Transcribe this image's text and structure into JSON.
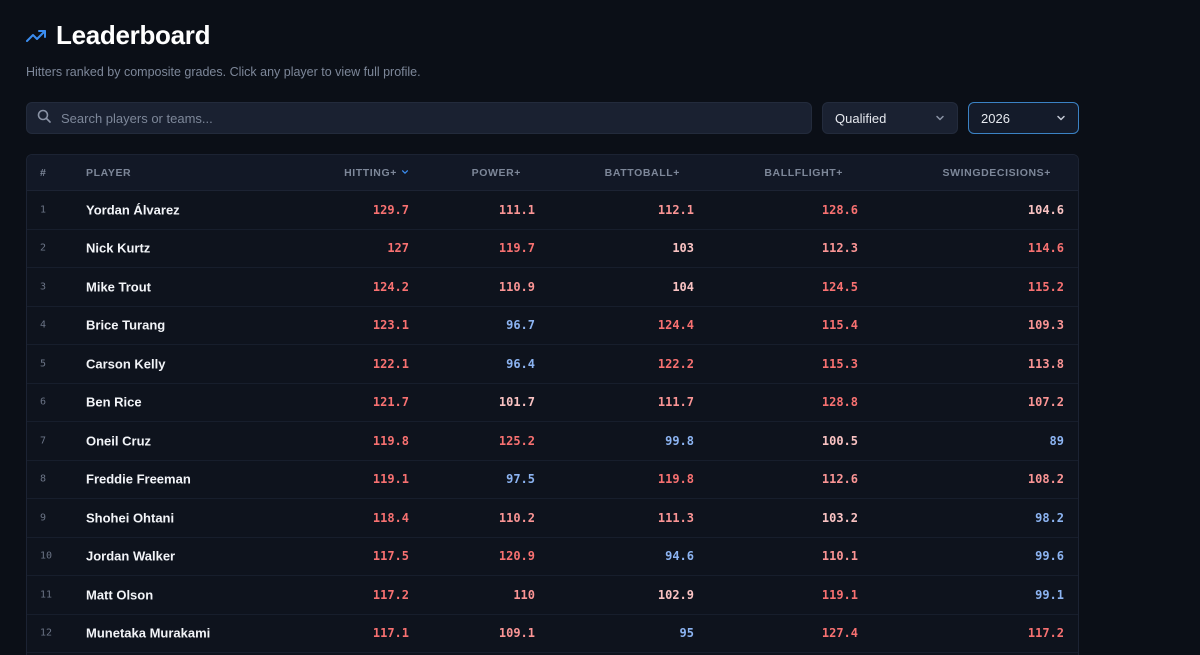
{
  "header": {
    "title": "Leaderboard",
    "subtitle": "Hitters ranked by composite grades. Click any player to view full profile."
  },
  "search": {
    "placeholder": "Search players or teams...",
    "value": ""
  },
  "filters": {
    "qualifier": "Qualified",
    "season": "2026"
  },
  "table": {
    "columns": {
      "rank": "#",
      "player": "PLAYER",
      "hitting": "HITTING+",
      "power": "POWER+",
      "battoball": "BATTOBALL+",
      "ballflight": "BALLFLIGHT+",
      "swingdecisions": "SWINGDECISIONS+"
    },
    "sort_column": "hitting",
    "sort_direction": "desc",
    "rows": [
      {
        "rank": "1",
        "player": "Yordan Álvarez",
        "hitting": "129.7",
        "power": "111.1",
        "battoball": "112.1",
        "ballflight": "128.6",
        "swingdecisions": "104.6"
      },
      {
        "rank": "2",
        "player": "Nick Kurtz",
        "hitting": "127",
        "power": "119.7",
        "battoball": "103",
        "ballflight": "112.3",
        "swingdecisions": "114.6"
      },
      {
        "rank": "3",
        "player": "Mike Trout",
        "hitting": "124.2",
        "power": "110.9",
        "battoball": "104",
        "ballflight": "124.5",
        "swingdecisions": "115.2"
      },
      {
        "rank": "4",
        "player": "Brice Turang",
        "hitting": "123.1",
        "power": "96.7",
        "battoball": "124.4",
        "ballflight": "115.4",
        "swingdecisions": "109.3"
      },
      {
        "rank": "5",
        "player": "Carson Kelly",
        "hitting": "122.1",
        "power": "96.4",
        "battoball": "122.2",
        "ballflight": "115.3",
        "swingdecisions": "113.8"
      },
      {
        "rank": "6",
        "player": "Ben Rice",
        "hitting": "121.7",
        "power": "101.7",
        "battoball": "111.7",
        "ballflight": "128.8",
        "swingdecisions": "107.2"
      },
      {
        "rank": "7",
        "player": "Oneil Cruz",
        "hitting": "119.8",
        "power": "125.2",
        "battoball": "99.8",
        "ballflight": "100.5",
        "swingdecisions": "89"
      },
      {
        "rank": "8",
        "player": "Freddie Freeman",
        "hitting": "119.1",
        "power": "97.5",
        "battoball": "119.8",
        "ballflight": "112.6",
        "swingdecisions": "108.2"
      },
      {
        "rank": "9",
        "player": "Shohei Ohtani",
        "hitting": "118.4",
        "power": "110.2",
        "battoball": "111.3",
        "ballflight": "103.2",
        "swingdecisions": "98.2"
      },
      {
        "rank": "10",
        "player": "Jordan Walker",
        "hitting": "117.5",
        "power": "120.9",
        "battoball": "94.6",
        "ballflight": "110.1",
        "swingdecisions": "99.6"
      },
      {
        "rank": "11",
        "player": "Matt Olson",
        "hitting": "117.2",
        "power": "110",
        "battoball": "102.9",
        "ballflight": "119.1",
        "swingdecisions": "99.1"
      },
      {
        "rank": "12",
        "player": "Munetaka Murakami",
        "hitting": "117.1",
        "power": "109.1",
        "battoball": "95",
        "ballflight": "127.4",
        "swingdecisions": "117.2"
      }
    ]
  },
  "colors": {
    "accent": "#3b82c4",
    "high": "#f87171",
    "mid": "#fb9595",
    "low_above": "#f9c2c2",
    "below_avg": "#8cb4f2"
  }
}
